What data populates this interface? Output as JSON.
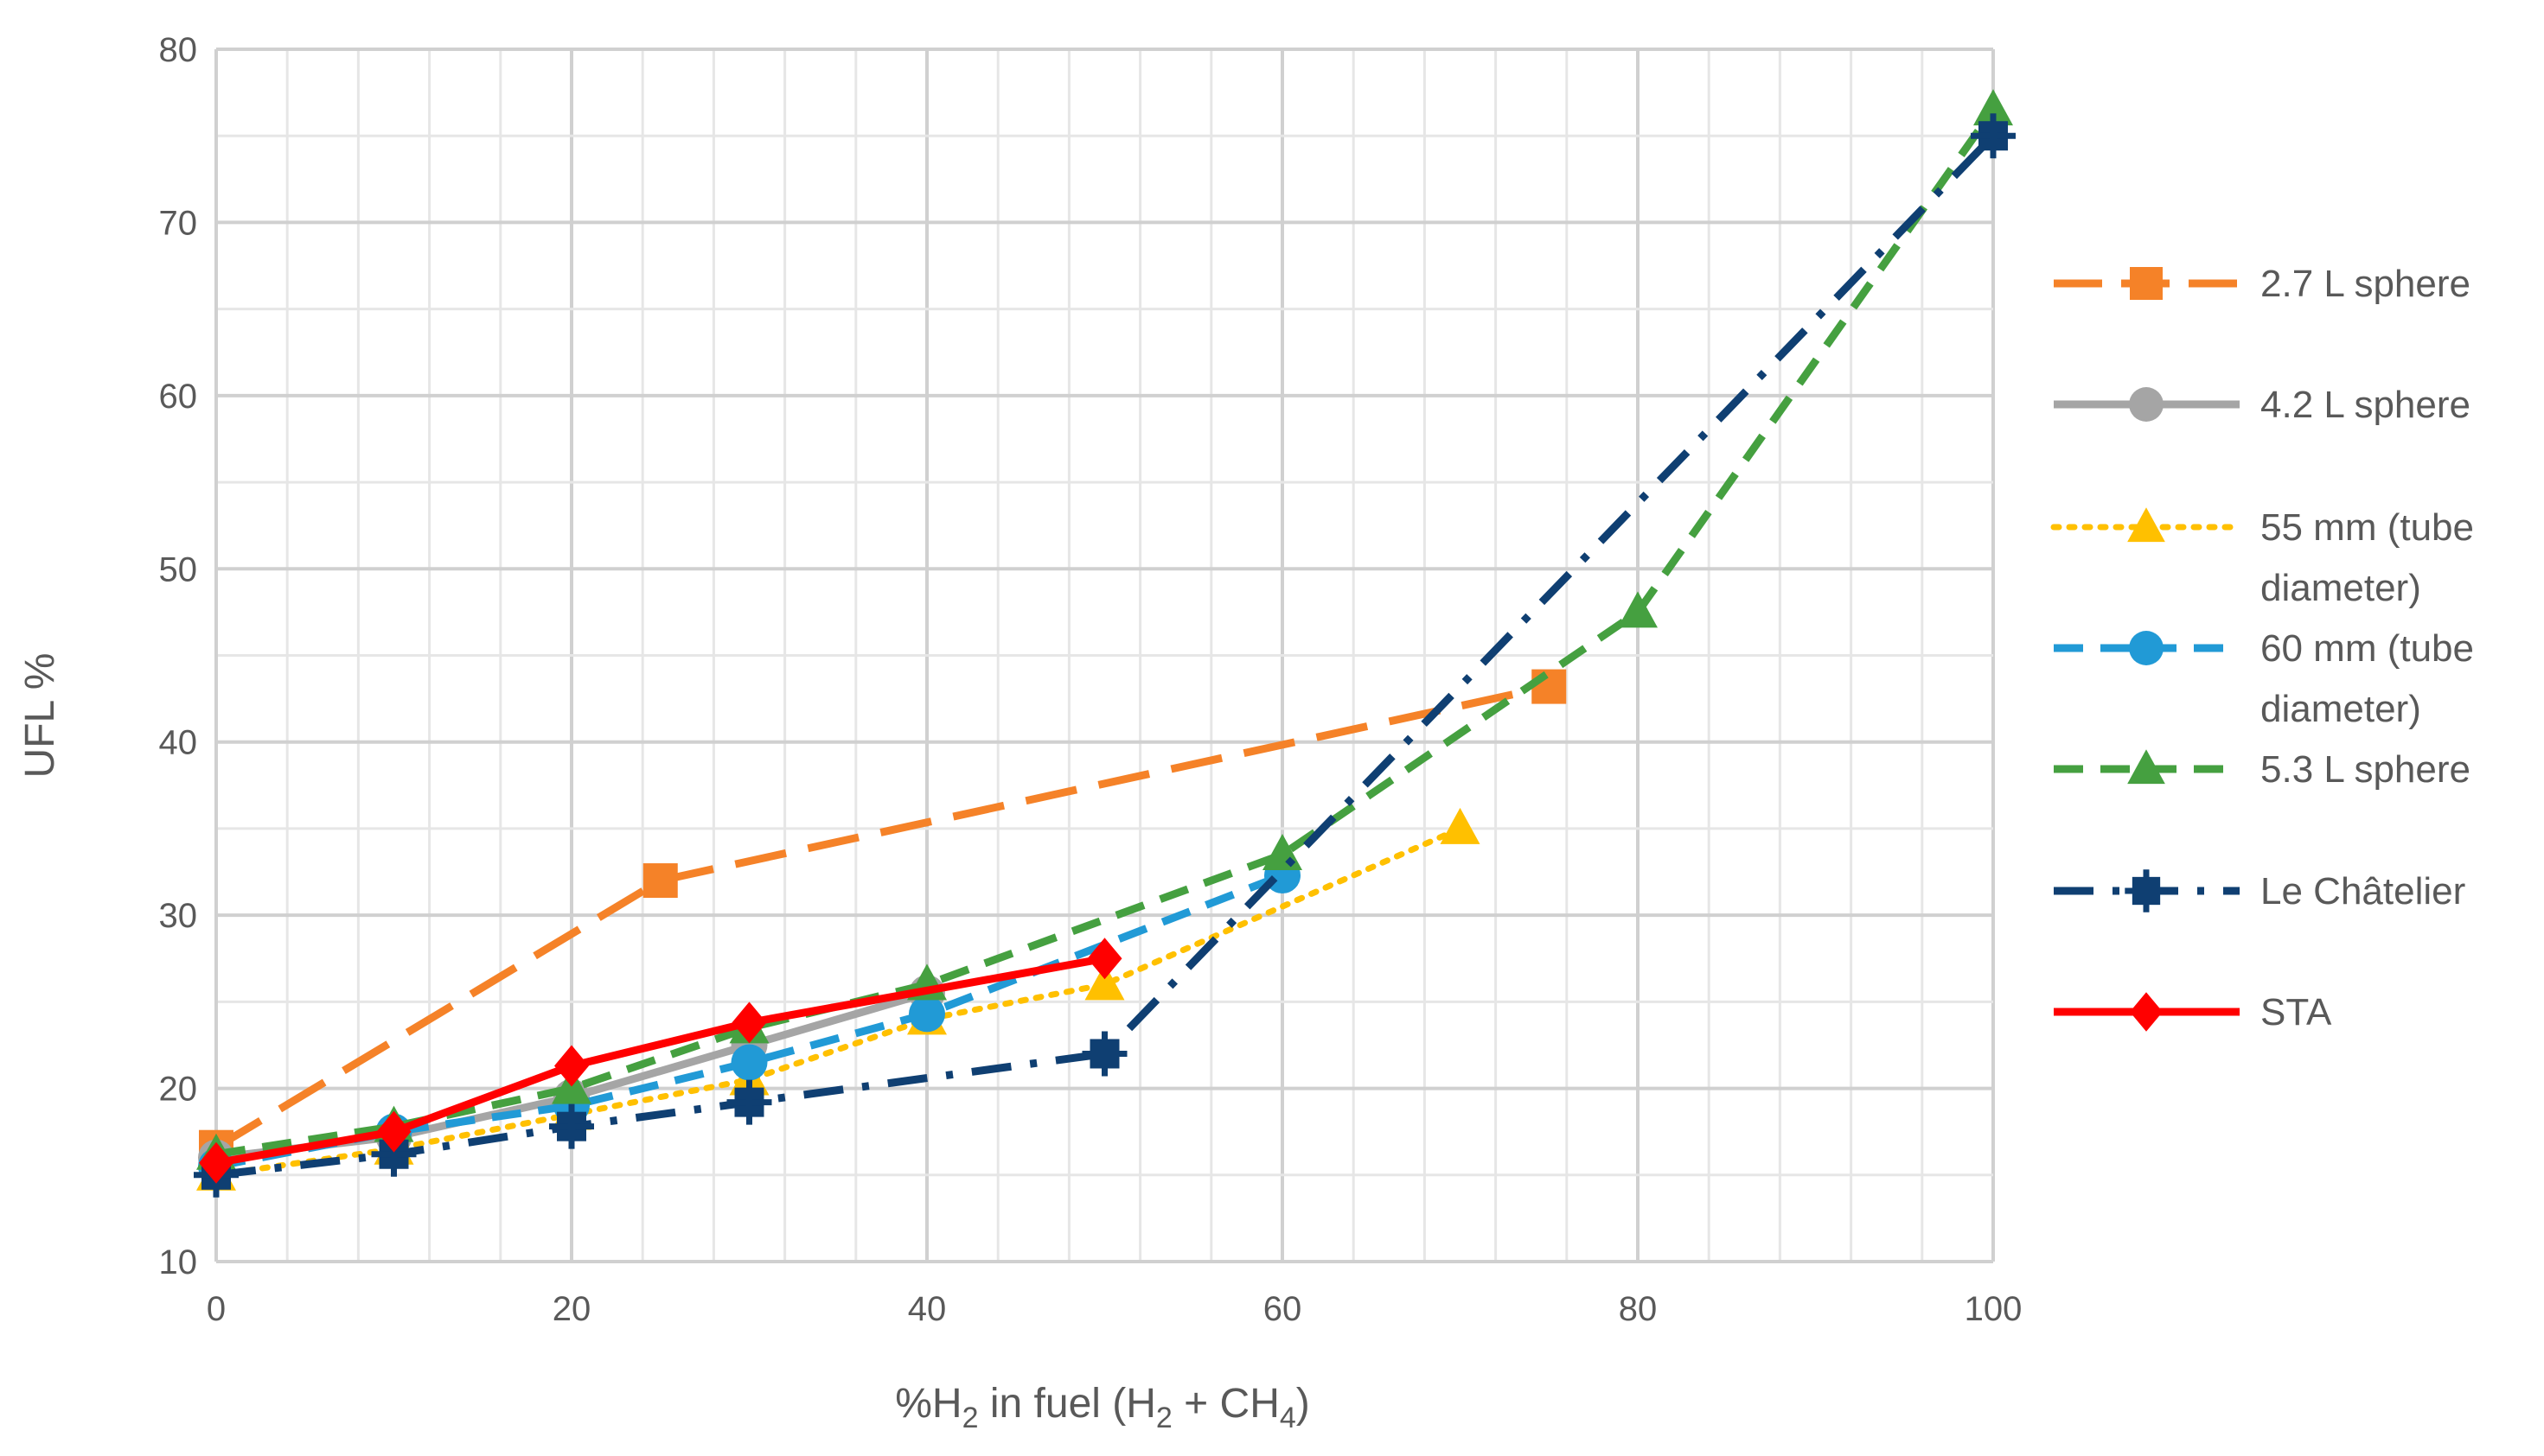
{
  "chart_data": {
    "type": "line",
    "title": "",
    "xlabel": {
      "prefix": "%H",
      "sub1": "2",
      "mid": " in fuel (H",
      "sub2": "2",
      "mid2": " + CH",
      "sub3": "4",
      "suffix": ")"
    },
    "ylabel": "UFL %",
    "xlim": [
      0,
      100
    ],
    "ylim": [
      10,
      80
    ],
    "xticks": [
      0,
      20,
      40,
      60,
      80,
      100
    ],
    "yticks": [
      10,
      20,
      30,
      40,
      50,
      60,
      70,
      80
    ],
    "grid": true,
    "legend_position": "right",
    "series": [
      {
        "name": "2.7 L sphere",
        "legend": [
          "2.7 L sphere"
        ],
        "color": "#F58228",
        "dash": "long-dash",
        "marker": "square",
        "x": [
          0,
          25,
          75
        ],
        "y": [
          16.6,
          32,
          43.2
        ]
      },
      {
        "name": "4.2 L sphere",
        "legend": [
          "4.2 L sphere"
        ],
        "color": "#A5A5A5",
        "dash": "solid",
        "marker": "circle",
        "x": [
          0,
          10,
          20,
          30,
          40
        ],
        "y": [
          16,
          17.2,
          19.5,
          22.5,
          25.5
        ]
      },
      {
        "name": "55 mm (tube diameter)",
        "legend": [
          "55 mm (tube",
          "diameter)"
        ],
        "color": "#FFC000",
        "dash": "dot",
        "marker": "triangle",
        "x": [
          0,
          10,
          20,
          30,
          40,
          50,
          70
        ],
        "y": [
          15,
          16.5,
          18.5,
          20.5,
          24,
          26,
          35
        ]
      },
      {
        "name": "60 mm (tube diameter)",
        "legend": [
          "60 mm (tube",
          "diameter)"
        ],
        "color": "#219AD6",
        "dash": "dash",
        "marker": "circle",
        "x": [
          0,
          10,
          20,
          30,
          40,
          60
        ],
        "y": [
          15.5,
          17.5,
          19,
          21.5,
          24.3,
          32.3
        ]
      },
      {
        "name": "5.3 L sphere",
        "legend": [
          "5.3 L sphere"
        ],
        "color": "#45A040",
        "dash": "dash",
        "marker": "triangle",
        "x": [
          0,
          10,
          20,
          30,
          40,
          60,
          80,
          100
        ],
        "y": [
          16.2,
          17.8,
          20,
          23.5,
          26,
          33.5,
          47.5,
          76.5
        ]
      },
      {
        "name": "Le Châtelier",
        "legend": [
          "Le Châtelier"
        ],
        "color": "#0F3F72",
        "dash": "dash-dot",
        "marker": "square-cross",
        "x": [
          0,
          10,
          20,
          30,
          50,
          100
        ],
        "y": [
          15,
          16.2,
          17.8,
          19.2,
          22,
          75
        ]
      },
      {
        "name": "STA",
        "legend": [
          "STA"
        ],
        "color": "#FF0000",
        "dash": "solid",
        "marker": "diamond",
        "x": [
          0,
          10,
          20,
          30,
          50
        ],
        "y": [
          15.7,
          17.5,
          21.3,
          23.8,
          27.5
        ]
      }
    ]
  }
}
